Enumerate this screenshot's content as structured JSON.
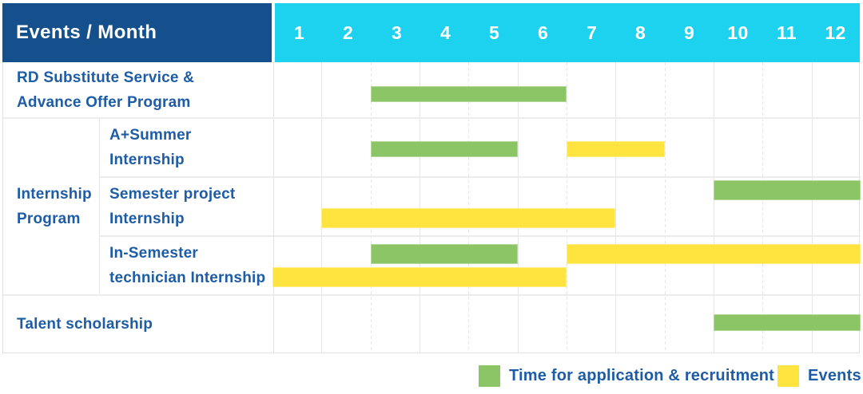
{
  "title": "Events / Month",
  "header": {
    "label": "Events / Month",
    "months": [
      "1",
      "2",
      "3",
      "4",
      "5",
      "6",
      "7",
      "8",
      "9",
      "10",
      "11",
      "12"
    ]
  },
  "colors": {
    "header_bg": "#15508C",
    "months_bg": "#1CD2EE",
    "bar_green": "#8CC566",
    "bar_yellow": "#FFE33F",
    "label_text": "#1E5CA6"
  },
  "rows": {
    "rd": {
      "label": "RD Substitute Service &\nAdvance Offer Program"
    },
    "group": {
      "label": "Internship\nProgram"
    },
    "summer": {
      "label": "A+Summer\nInternship"
    },
    "semester": {
      "label": "Semester project\nInternship"
    },
    "insemester": {
      "label": "In-Semester\ntechnician Internship"
    },
    "talent": {
      "label": "Talent scholarship"
    }
  },
  "legend": {
    "application": {
      "label": "Time for application & recruitment",
      "color": "#8CC566"
    },
    "events": {
      "label": "Events",
      "color": "#FFE33F"
    }
  },
  "bars": [
    {
      "track": "r1",
      "kind": "application",
      "start": 3,
      "end": 7
    },
    {
      "track": "r2",
      "kind": "application",
      "start": 3,
      "end": 6
    },
    {
      "track": "r2",
      "kind": "events",
      "start": 7,
      "end": 9
    },
    {
      "track": "r3t",
      "kind": "application",
      "start": 10,
      "end": 13
    },
    {
      "track": "r3b",
      "kind": "events",
      "start": 2,
      "end": 8
    },
    {
      "track": "r4t",
      "kind": "application",
      "start": 3,
      "end": 6
    },
    {
      "track": "r4t",
      "kind": "events",
      "start": 7,
      "end": 13
    },
    {
      "track": "r4b",
      "kind": "events",
      "start": 1,
      "end": 7
    },
    {
      "track": "r5",
      "kind": "application",
      "start": 10,
      "end": 13
    }
  ],
  "chart_data": {
    "type": "table",
    "title": "Events / Month",
    "columns": [
      "1",
      "2",
      "3",
      "4",
      "5",
      "6",
      "7",
      "8",
      "9",
      "10",
      "11",
      "12"
    ],
    "legend": [
      {
        "label": "Time for application & recruitment",
        "color": "#8CC566"
      },
      {
        "label": "Events",
        "color": "#FFE33F"
      }
    ],
    "rows": [
      {
        "event": "RD Substitute Service & Advance Offer Program",
        "group": null,
        "spans": [
          {
            "kind": "application",
            "month_start": 3,
            "month_end": 6
          }
        ]
      },
      {
        "event": "A+Summer Internship",
        "group": "Internship Program",
        "spans": [
          {
            "kind": "application",
            "month_start": 3,
            "month_end": 5
          },
          {
            "kind": "events",
            "month_start": 7,
            "month_end": 8
          }
        ]
      },
      {
        "event": "Semester project Internship",
        "group": "Internship Program",
        "spans": [
          {
            "kind": "application",
            "month_start": 10,
            "month_end": 12
          },
          {
            "kind": "events",
            "month_start": 2,
            "month_end": 7
          }
        ]
      },
      {
        "event": "In-Semester technician Internship",
        "group": "Internship Program",
        "spans": [
          {
            "kind": "application",
            "month_start": 3,
            "month_end": 5
          },
          {
            "kind": "events",
            "month_start": 7,
            "month_end": 12
          },
          {
            "kind": "events",
            "month_start": 1,
            "month_end": 6
          }
        ]
      },
      {
        "event": "Talent scholarship",
        "group": null,
        "spans": [
          {
            "kind": "application",
            "month_start": 10,
            "month_end": 12
          }
        ]
      }
    ]
  }
}
